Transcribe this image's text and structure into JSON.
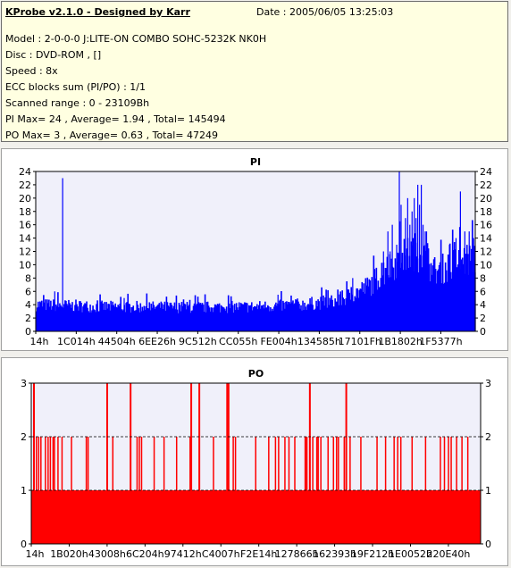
{
  "info": {
    "title": "KProbe v2.1.0 - Designed by Karr",
    "date": "Date : 2005/06/05 13:25:03",
    "lines": [
      "Model : 2-0-0-0 J:LITE-ON COMBO SOHC-5232K NK0H",
      "Disc : DVD-ROM ,  []",
      "Speed : 8x",
      "ECC blocks sum (PI/PO) : 1/1",
      "Scanned range : 0 - 23109Bh",
      "PI Max= 24 , Average= 1.94 , Total= 145494",
      "PO Max= 3 , Average= 0.63 , Total= 47249"
    ]
  },
  "colors": {
    "background": "#f1f0ec",
    "info_background": "#ffffe1",
    "plot_background": "#f0f0fa",
    "pi_color": "#0000ff",
    "po_color": "#ff0000",
    "grid": "#000000"
  },
  "chart_data": [
    {
      "type": "bar",
      "title": "PI",
      "ylim": [
        0,
        24
      ],
      "yticks": [
        0,
        2,
        4,
        6,
        8,
        10,
        12,
        14,
        16,
        18,
        20,
        22,
        24
      ],
      "grid": "dashed at top",
      "x_tick_labels": [
        "14h",
        "1C014h",
        "44504h",
        "6EE26h",
        "9C512h",
        "CC055h",
        "FE004h",
        "134585h",
        "17101Fh",
        "1B1802h",
        "1F5377h"
      ],
      "x_range": "0 - 23109Bh",
      "baseline_profile": [
        [
          0,
          4
        ],
        [
          0.15,
          3.7
        ],
        [
          0.35,
          3.6
        ],
        [
          0.5,
          3.7
        ],
        [
          0.6,
          4
        ],
        [
          0.68,
          4.5
        ],
        [
          0.72,
          5.5
        ],
        [
          0.76,
          7
        ],
        [
          0.79,
          9
        ],
        [
          0.83,
          11
        ],
        [
          0.86,
          12
        ],
        [
          0.89,
          11
        ],
        [
          0.9,
          9
        ],
        [
          0.93,
          9.5
        ],
        [
          0.96,
          10.5
        ],
        [
          1.0,
          11
        ]
      ],
      "spikes": [
        [
          0.06,
          23
        ],
        [
          0.042,
          6
        ],
        [
          0.2,
          5
        ],
        [
          0.55,
          5.5
        ],
        [
          0.72,
          8
        ],
        [
          0.79,
          12
        ],
        [
          0.8,
          15
        ],
        [
          0.805,
          12
        ],
        [
          0.81,
          16
        ],
        [
          0.82,
          13
        ],
        [
          0.826,
          24
        ],
        [
          0.83,
          19
        ],
        [
          0.84,
          17
        ],
        [
          0.845,
          20
        ],
        [
          0.85,
          16
        ],
        [
          0.855,
          18
        ],
        [
          0.86,
          20
        ],
        [
          0.864,
          17
        ],
        [
          0.868,
          22
        ],
        [
          0.872,
          19
        ],
        [
          0.876,
          22
        ],
        [
          0.88,
          16
        ],
        [
          0.885,
          15
        ],
        [
          0.888,
          15
        ],
        [
          0.94,
          13
        ],
        [
          0.955,
          14
        ],
        [
          0.965,
          21
        ],
        [
          0.975,
          15
        ],
        [
          0.985,
          15
        ],
        [
          0.995,
          14
        ]
      ]
    },
    {
      "type": "bar",
      "title": "PO",
      "ylim": [
        0,
        3
      ],
      "yticks": [
        0,
        1,
        2,
        3
      ],
      "grid": "dashed at 1, 2, 3",
      "x_tick_labels": [
        "14h",
        "1B020h",
        "43008h",
        "6C204h",
        "97412h",
        "C4007h",
        "F2E14h",
        "127866h",
        "162393h",
        "19F212h",
        "1E0052h",
        "220E40h"
      ],
      "x_range": "0 - 23109Bh",
      "base_level": 1,
      "level3_positions": [
        0.004,
        0.167,
        0.219,
        0.354,
        0.372,
        0.434,
        0.437,
        0.618,
        0.699
      ],
      "level2_positions": [
        0.01,
        0.015,
        0.02,
        0.03,
        0.036,
        0.041,
        0.047,
        0.05,
        0.058,
        0.067,
        0.088,
        0.121,
        0.125,
        0.18,
        0.234,
        0.239,
        0.244,
        0.272,
        0.294,
        0.322,
        0.352,
        0.404,
        0.448,
        0.453,
        0.498,
        0.527,
        0.542,
        0.549,
        0.563,
        0.572,
        0.585,
        0.608,
        0.61,
        0.612,
        0.625,
        0.634,
        0.637,
        0.643,
        0.659,
        0.671,
        0.678,
        0.682,
        0.695,
        0.708,
        0.732,
        0.768,
        0.787,
        0.806,
        0.814,
        0.821,
        0.846,
        0.876,
        0.909,
        0.918,
        0.927,
        0.933,
        0.945,
        0.957,
        0.97
      ]
    }
  ]
}
